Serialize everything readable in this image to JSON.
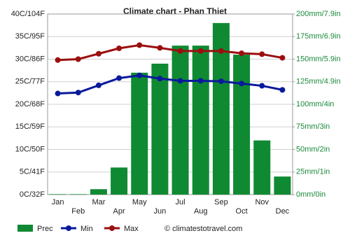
{
  "chart_data": {
    "type": "combo",
    "title": "Climate chart - Phan Thiet",
    "categories": [
      "Jan",
      "Feb",
      "Mar",
      "Apr",
      "May",
      "Jun",
      "Jul",
      "Aug",
      "Sep",
      "Oct",
      "Nov",
      "Dec"
    ],
    "series": [
      {
        "name": "Prec",
        "type": "bar",
        "axis": "y2",
        "color": "#0f8a33",
        "values": [
          0.5,
          0.5,
          6,
          30,
          135,
          145,
          165,
          165,
          190,
          155,
          60,
          20
        ]
      },
      {
        "name": "Min",
        "type": "line",
        "color": "#0a1a9c",
        "values": [
          22.4,
          22.6,
          24.2,
          25.8,
          26.4,
          25.7,
          25.2,
          25.2,
          25.1,
          24.6,
          24.1,
          23.2
        ]
      },
      {
        "name": "Max",
        "type": "line",
        "color": "#9b0f0f",
        "values": [
          29.8,
          30.0,
          31.2,
          32.4,
          33.1,
          32.5,
          31.8,
          31.8,
          31.8,
          31.3,
          31.1,
          30.3
        ]
      }
    ],
    "ylim": [
      0,
      40
    ],
    "yticks": [
      {
        "value": 0,
        "label": "0C/32F"
      },
      {
        "value": 5,
        "label": "5C/41F"
      },
      {
        "value": 10,
        "label": "10C/50F"
      },
      {
        "value": 15,
        "label": "15C/59F"
      },
      {
        "value": 20,
        "label": "20C/68F"
      },
      {
        "value": 25,
        "label": "25C/77F"
      },
      {
        "value": 30,
        "label": "30C/86F"
      },
      {
        "value": 35,
        "label": "35C/95F"
      },
      {
        "value": 40,
        "label": "40C/104F"
      }
    ],
    "y2lim": [
      0,
      200
    ],
    "y2ticks": [
      {
        "value": 0,
        "label": "0mm/0in"
      },
      {
        "value": 25,
        "label": "25mm/1in"
      },
      {
        "value": 50,
        "label": "50mm/2in"
      },
      {
        "value": 75,
        "label": "75mm/3in"
      },
      {
        "value": 100,
        "label": "100mm/4in"
      },
      {
        "value": 125,
        "label": "125mm/4.9in"
      },
      {
        "value": 150,
        "label": "150mm/5.9in"
      },
      {
        "value": 175,
        "label": "175mm/6.9in"
      },
      {
        "value": 200,
        "label": "200mm/7.9in"
      }
    ],
    "y2_color": "#1a8a3a",
    "grid": true,
    "source": "© climatestotravel.com"
  }
}
